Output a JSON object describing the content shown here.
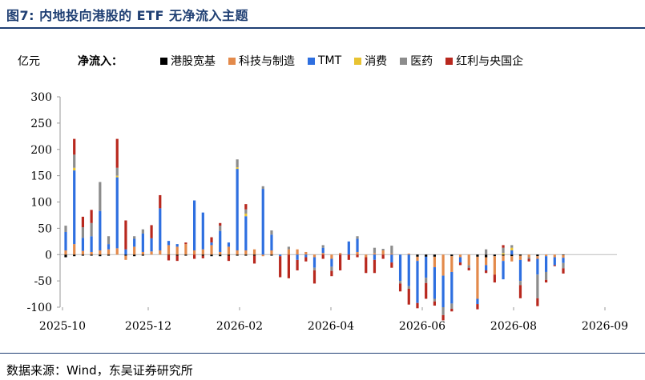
{
  "header": {
    "title": "图7:  内地投向港股的 ETF 无净流入主题"
  },
  "footer": {
    "source": "数据来源：Wind，东吴证券研究所"
  },
  "chart_data": {
    "type": "bar",
    "stacked": true,
    "unit_label": "亿元",
    "legend_title": "净流入：",
    "legend_position": "top",
    "ylim": [
      -100,
      300
    ],
    "yticks": [
      -100,
      -50,
      0,
      50,
      100,
      150,
      200,
      250,
      300
    ],
    "xtick_labels": [
      "2025-10",
      "2025-12",
      "2026-02",
      "2026-04",
      "2026-06",
      "2026-08",
      "2026-09"
    ],
    "grid": false,
    "series": [
      {
        "name": "港股宽基",
        "color": "#000000",
        "values": [
          -5,
          -3,
          -2,
          -2,
          -3,
          -2,
          0,
          -2,
          -3,
          -2,
          0,
          0,
          -1,
          -2,
          -2,
          0,
          -2,
          -3,
          -3,
          -2,
          -2,
          -2,
          -2,
          0,
          -2,
          0,
          0,
          0,
          0,
          0,
          0,
          0,
          0,
          0,
          0,
          0,
          0,
          0,
          0,
          0,
          0,
          -4,
          -4,
          -4,
          0,
          -3,
          0,
          0,
          -4,
          -5,
          -3,
          -2,
          -3,
          -2,
          0,
          -3,
          0,
          0,
          -1
        ]
      },
      {
        "name": "科技与制造",
        "color": "#e38a4b",
        "values": [
          8,
          20,
          7,
          5,
          8,
          10,
          12,
          -8,
          15,
          5,
          6,
          8,
          18,
          15,
          20,
          8,
          10,
          18,
          5,
          15,
          8,
          8,
          10,
          -3,
          8,
          0,
          10,
          10,
          5,
          -5,
          3,
          -8,
          3,
          0,
          5,
          -5,
          3,
          8,
          2,
          0,
          2,
          -8,
          0,
          -20,
          -40,
          -30,
          -5,
          -20,
          -80,
          -15,
          -35,
          -10,
          -10,
          -8,
          -5,
          -5,
          -3,
          -5,
          -5
        ]
      },
      {
        "name": "TMT",
        "color": "#2e6fe0",
        "values": [
          35,
          140,
          25,
          30,
          75,
          10,
          135,
          10,
          15,
          35,
          25,
          80,
          8,
          5,
          0,
          95,
          70,
          5,
          40,
          8,
          155,
          65,
          0,
          125,
          30,
          -3,
          0,
          -10,
          -5,
          -20,
          10,
          -15,
          0,
          25,
          25,
          0,
          -10,
          0,
          -15,
          -50,
          -60,
          -80,
          -40,
          -60,
          -60,
          -60,
          -10,
          0,
          -10,
          -10,
          0,
          -35,
          8,
          -40,
          0,
          -30,
          -30,
          -15,
          -10
        ]
      },
      {
        "name": "消费",
        "color": "#e8c332",
        "values": [
          0,
          5,
          0,
          0,
          0,
          0,
          3,
          0,
          0,
          0,
          0,
          0,
          0,
          0,
          0,
          0,
          0,
          0,
          0,
          0,
          3,
          5,
          0,
          0,
          0,
          0,
          0,
          0,
          0,
          0,
          0,
          0,
          0,
          0,
          0,
          0,
          0,
          0,
          0,
          0,
          0,
          0,
          0,
          0,
          0,
          0,
          0,
          0,
          0,
          0,
          0,
          3,
          5,
          0,
          0,
          0,
          0,
          0,
          0
        ]
      },
      {
        "name": "医药",
        "color": "#8c8c8c",
        "values": [
          12,
          25,
          20,
          25,
          55,
          15,
          15,
          0,
          5,
          8,
          0,
          0,
          0,
          0,
          0,
          0,
          0,
          0,
          10,
          0,
          15,
          8,
          0,
          5,
          8,
          0,
          5,
          0,
          0,
          -5,
          5,
          -8,
          0,
          0,
          5,
          0,
          10,
          3,
          15,
          -5,
          -5,
          0,
          -10,
          -5,
          -15,
          -10,
          0,
          -5,
          0,
          10,
          0,
          10,
          5,
          -8,
          -3,
          -45,
          -15,
          0,
          -10
        ]
      },
      {
        "name": "红利与央国企",
        "color": "#b8281e",
        "values": [
          0,
          30,
          20,
          25,
          0,
          0,
          55,
          55,
          0,
          0,
          25,
          25,
          -10,
          -10,
          3,
          -8,
          -5,
          10,
          5,
          -10,
          0,
          10,
          -15,
          0,
          0,
          -40,
          -45,
          -20,
          -8,
          -25,
          -8,
          -10,
          -30,
          -10,
          -5,
          -30,
          -25,
          -8,
          -10,
          -15,
          -30,
          -10,
          -30,
          -8,
          -10,
          -5,
          -5,
          -5,
          -10,
          -5,
          -15,
          5,
          0,
          -25,
          -5,
          -15,
          -5,
          -2,
          -10
        ]
      }
    ]
  }
}
